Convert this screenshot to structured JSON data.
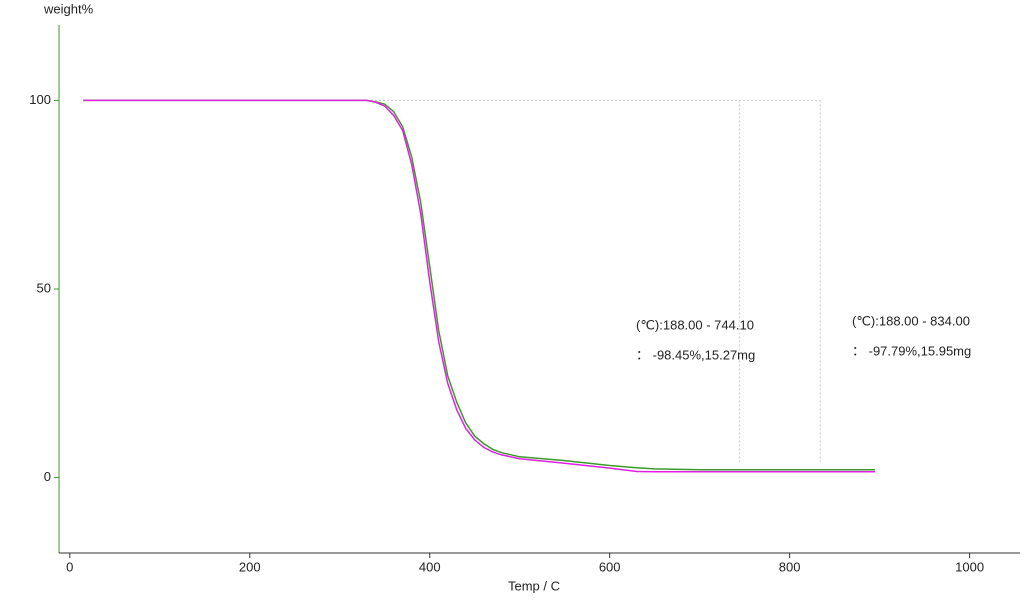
{
  "chart_data": {
    "type": "line",
    "ylabel": "weight%",
    "xlabel": "Temp / C",
    "x": [
      15,
      200,
      330,
      340,
      350,
      360,
      370,
      380,
      390,
      400,
      410,
      420,
      430,
      440,
      450,
      460,
      470,
      480,
      500,
      550,
      600,
      630,
      650,
      700,
      800,
      895
    ],
    "series": [
      {
        "color": "#3a9a2a",
        "values": [
          100,
          100,
          100,
          99.6,
          99,
          97,
          93,
          85,
          73,
          56,
          39,
          27,
          20,
          14.5,
          11,
          9,
          7.5,
          6.6,
          5.5,
          4.5,
          3.2,
          2.6,
          2.3,
          2.1,
          2.1,
          2.1
        ]
      },
      {
        "color": "#e020e0",
        "values": [
          100,
          100,
          100,
          99.5,
          98.5,
          96,
          92,
          83,
          70,
          52,
          36,
          25,
          18,
          13,
          10,
          8,
          6.8,
          6,
          5,
          3.8,
          2.5,
          1.6,
          1.55,
          1.55,
          1.55,
          1.55
        ]
      }
    ],
    "annotations": [
      {
        "range": [
          188,
          744.1
        ],
        "color": "#e020e0",
        "line1": "(℃):188.00 - 744.10",
        "line2": "： -98.45%,15.27mg"
      },
      {
        "range": [
          188,
          834
        ],
        "color": "#3a9a2a",
        "line1": "(℃):188.00 - 834.00",
        "line2": "： -97.79%,15.95mg"
      }
    ],
    "xlim": [
      -12,
      1056
    ],
    "ylim": [
      -20,
      120
    ],
    "xticks": [
      0,
      200,
      400,
      600,
      800,
      1000
    ],
    "yticks": [
      0,
      50,
      100
    ]
  }
}
